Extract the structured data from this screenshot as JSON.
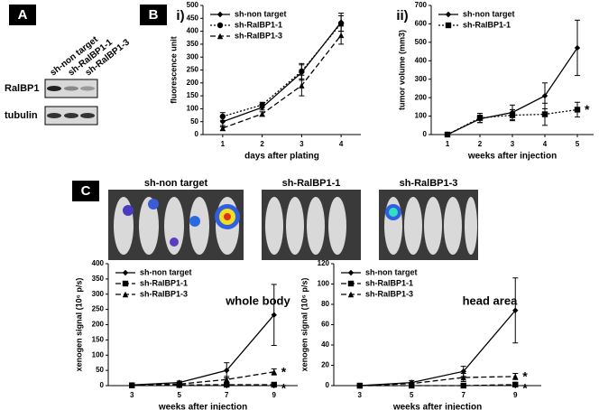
{
  "panel_labels": [
    "A",
    "B",
    "C"
  ],
  "blot": {
    "lanes": [
      "sh-non target",
      "sh-RalBP1-1",
      "sh-RalBP1-3"
    ],
    "rows": [
      "RalBP1",
      "tubulin"
    ]
  },
  "images": {
    "labels": [
      "sh-non target",
      "sh-RalBP1-1",
      "sh-RalBP1-3"
    ]
  },
  "chart_data": [
    {
      "type": "line",
      "title": "i)",
      "x_label": "days after plating",
      "y_label": "fluorescence unit",
      "categories": [
        "1",
        "2",
        "3",
        "4"
      ],
      "ylim": [
        0,
        500
      ],
      "yticks": [
        0,
        50,
        100,
        150,
        200,
        250,
        300,
        350,
        400,
        450,
        500
      ],
      "legend": "upper left",
      "series": [
        {
          "name": "sh-non target",
          "color": "#000000",
          "dash": "solid",
          "marker": "diamond",
          "values": [
            50,
            105,
            240,
            435
          ],
          "errors": [
            20,
            10,
            30,
            35
          ]
        },
        {
          "name": "sh-RalBP1-1",
          "color": "#000000",
          "dash": "dotted",
          "marker": "circle",
          "values": [
            70,
            115,
            245,
            430
          ],
          "errors": [
            15,
            10,
            30,
            30
          ]
        },
        {
          "name": "sh-RalBP1-3",
          "color": "#000000",
          "dash": "dashed",
          "marker": "triangle",
          "values": [
            25,
            80,
            190,
            385
          ],
          "errors": [
            10,
            8,
            40,
            35
          ]
        }
      ]
    },
    {
      "type": "line",
      "title": "ii)",
      "x_label": "weeks after injection",
      "y_label": "tumor volume (mm3)",
      "categories": [
        "1",
        "2",
        "3",
        "4",
        "5"
      ],
      "ylim": [
        0,
        700
      ],
      "yticks": [
        0,
        100,
        200,
        300,
        400,
        500,
        600,
        700
      ],
      "legend": "upper left",
      "annotations": [
        "*"
      ],
      "series": [
        {
          "name": "sh-non target",
          "color": "#000000",
          "dash": "solid",
          "marker": "diamond",
          "values": [
            0,
            85,
            120,
            210,
            470
          ],
          "errors": [
            0,
            20,
            40,
            70,
            150
          ]
        },
        {
          "name": "sh-RalBP1-1",
          "color": "#000000",
          "dash": "dotted",
          "marker": "square",
          "values": [
            0,
            90,
            105,
            110,
            135
          ],
          "errors": [
            0,
            25,
            30,
            60,
            40
          ]
        }
      ]
    },
    {
      "type": "line",
      "note": "whole body",
      "x_label": "weeks after injection",
      "y_label": "xenogen signal (10⁶ p/s)",
      "categories": [
        "3",
        "5",
        "7",
        "9"
      ],
      "ylim": [
        0,
        400
      ],
      "yticks": [
        0,
        50,
        100,
        150,
        200,
        250,
        300,
        350,
        400
      ],
      "legend": "upper left",
      "annotations": [
        "*",
        "*"
      ],
      "series": [
        {
          "name": "sh-non target",
          "color": "#000000",
          "dash": "solid",
          "marker": "diamond",
          "values": [
            2,
            10,
            50,
            232
          ],
          "errors": [
            0,
            5,
            25,
            100
          ]
        },
        {
          "name": "sh-RalBP1-1",
          "color": "#000000",
          "dash": "dashed",
          "marker": "square",
          "values": [
            1,
            2,
            3,
            3
          ],
          "errors": [
            0,
            1,
            1,
            1
          ]
        },
        {
          "name": "sh-RalBP1-3",
          "color": "#000000",
          "dash": "dashed",
          "marker": "triangle",
          "values": [
            1,
            5,
            20,
            45
          ],
          "errors": [
            0,
            3,
            10,
            10
          ]
        }
      ]
    },
    {
      "type": "line",
      "note": "head area",
      "x_label": "weeks after injection",
      "y_label": "xenogen signal (10⁶ p/s)",
      "categories": [
        "3",
        "5",
        "7",
        "9"
      ],
      "ylim": [
        0,
        120
      ],
      "yticks": [
        0,
        20,
        40,
        60,
        80,
        100,
        120
      ],
      "legend": "upper left",
      "annotations": [
        "*",
        "*"
      ],
      "series": [
        {
          "name": "sh-non target",
          "color": "#000000",
          "dash": "solid",
          "marker": "diamond",
          "values": [
            0,
            3,
            14,
            74
          ],
          "errors": [
            0,
            2,
            5,
            32
          ]
        },
        {
          "name": "sh-RalBP1-1",
          "color": "#000000",
          "dash": "dashed",
          "marker": "square",
          "values": [
            0,
            0,
            0,
            1
          ],
          "errors": [
            0,
            0,
            0,
            0
          ]
        },
        {
          "name": "sh-RalBP1-3",
          "color": "#000000",
          "dash": "dashed",
          "marker": "triangle",
          "values": [
            0,
            2,
            8,
            9
          ],
          "errors": [
            0,
            1,
            4,
            3
          ]
        }
      ]
    }
  ]
}
